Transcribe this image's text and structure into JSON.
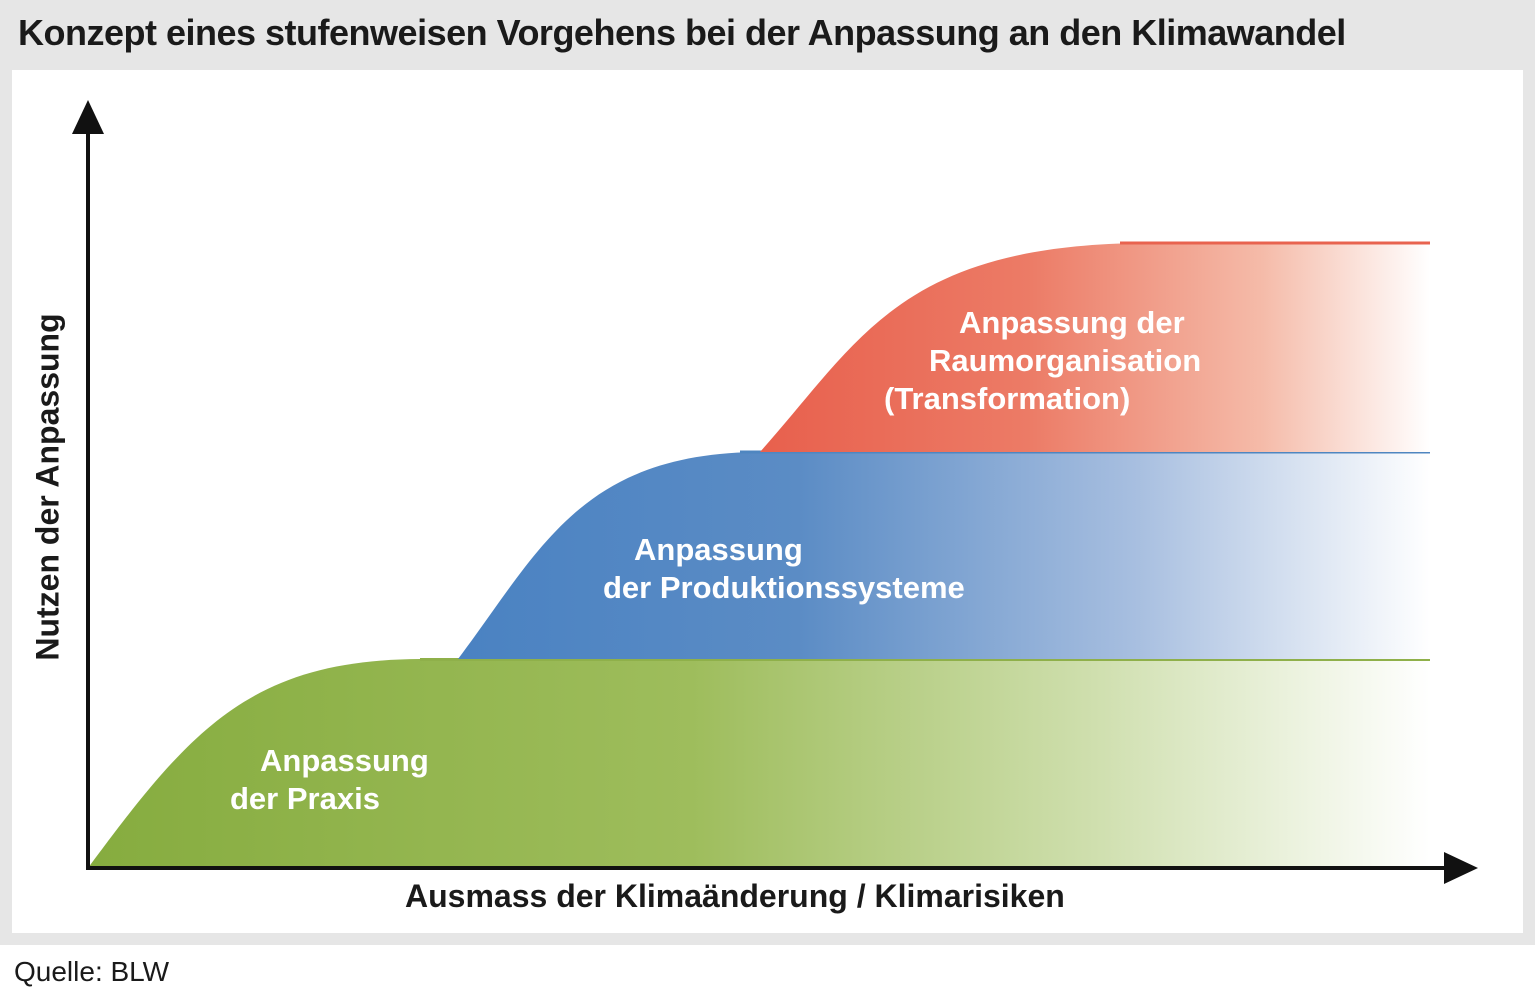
{
  "title": "Konzept eines stufenweisen Vorgehens bei der Anpassung an den Klimawandel",
  "axes": {
    "x_label": "Ausmass der Klimaänderung / Klimarisiken",
    "y_label": "Nutzen der Anpassung"
  },
  "stages": [
    {
      "line1": "Anpassung",
      "line2": "der Praxis",
      "line3": "",
      "color": "#8fb04a"
    },
    {
      "line1": "Anpassung",
      "line2": "der Produktionssysteme",
      "line3": "",
      "color": "#4f86c0"
    },
    {
      "line1": "Anpassung der",
      "line2": "Raumorganisation",
      "line3": "(Transformation)",
      "color": "#e8634f"
    }
  ],
  "source": "Quelle: BLW"
}
